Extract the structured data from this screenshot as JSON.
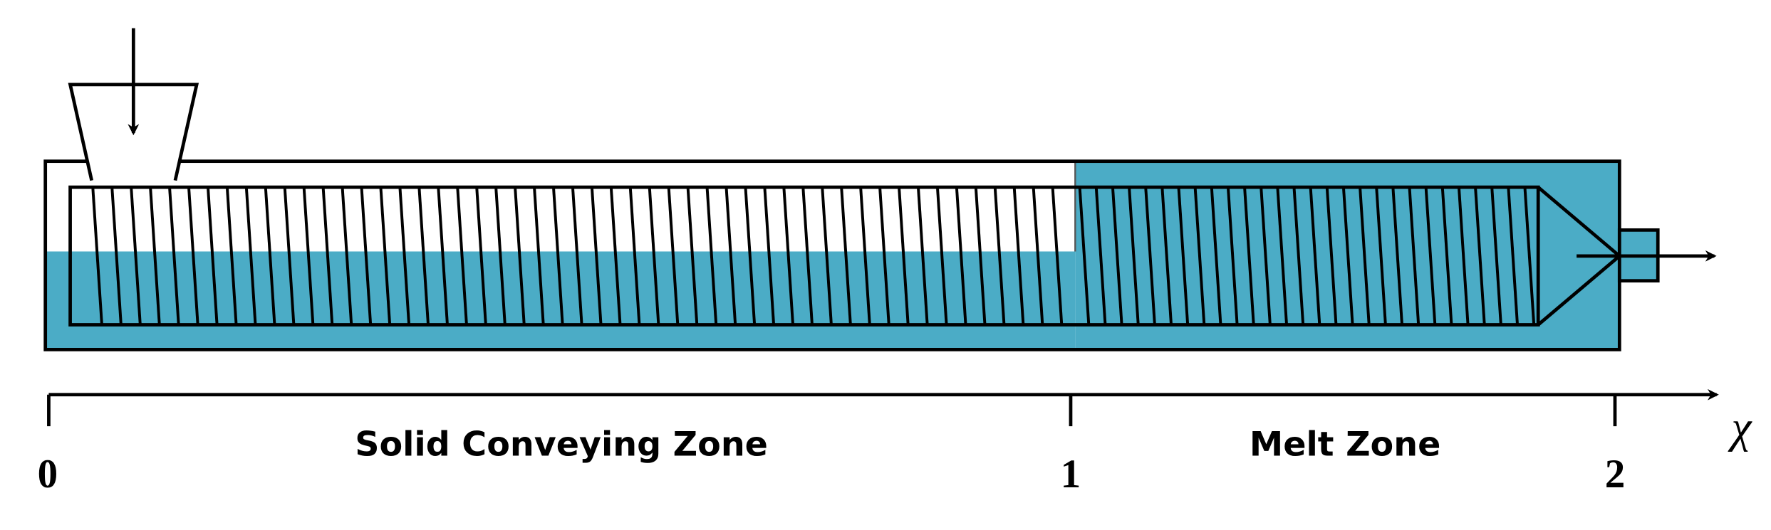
{
  "axis": {
    "label": "χ",
    "ticks": [
      "0",
      "1",
      "2"
    ]
  },
  "zones": [
    "Solid Conveying Zone",
    "Melt Zone"
  ]
}
